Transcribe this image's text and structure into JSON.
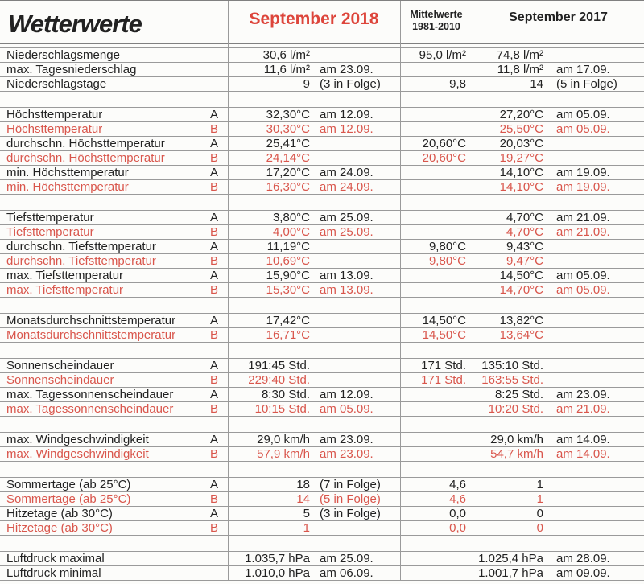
{
  "header": {
    "title": "Wetterwerte",
    "col_2018": "September 2018",
    "col_mittel_line1": "Mittelwerte",
    "col_mittel_line2": "1981-2010",
    "col_2017": "September 2017"
  },
  "colors": {
    "red_rows": "#d9564c",
    "red_header": "#dd453b",
    "grid_line": "#9a9a9a",
    "text": "#222222",
    "paper": "#fcfcfa"
  },
  "sections": [
    {
      "name": "niederschlag",
      "rows": [
        {
          "label": "Niederschlagsmenge",
          "variant": "",
          "style": "black",
          "v2018": "30,6 l/m²",
          "d2018": "",
          "mittel": "95,0 l/m²",
          "v2017": "74,8 l/m²",
          "d2017": ""
        },
        {
          "label": "max. Tagesniederschlag",
          "variant": "",
          "style": "black",
          "v2018": "11,6 l/m²",
          "d2018": "am 23.09.",
          "mittel": "",
          "v2017": "11,8 l/m²",
          "d2017": "am 17.09."
        },
        {
          "label": "Niederschlagstage",
          "variant": "",
          "style": "black",
          "v2018": "9",
          "d2018": "(3 in Folge)",
          "mittel": "9,8",
          "v2017": "14",
          "d2017": "(5 in Folge)"
        }
      ]
    },
    {
      "name": "hoechsttemperatur",
      "rows": [
        {
          "label": "Höchsttemperatur",
          "variant": "A",
          "style": "black",
          "v2018": "32,30°C",
          "d2018": "am 12.09.",
          "mittel": "",
          "v2017": "27,20°C",
          "d2017": "am 05.09."
        },
        {
          "label": "Höchsttemperatur",
          "variant": "B",
          "style": "red",
          "v2018": "30,30°C",
          "d2018": "am 12.09.",
          "mittel": "",
          "v2017": "25,50°C",
          "d2017": "am 05.09."
        },
        {
          "label": "durchschn. Höchsttemperatur",
          "variant": "A",
          "style": "black",
          "v2018": "25,41°C",
          "d2018": "",
          "mittel": "20,60°C",
          "v2017": "20,03°C",
          "d2017": ""
        },
        {
          "label": "durchschn. Höchsttemperatur",
          "variant": "B",
          "style": "red",
          "v2018": "24,14°C",
          "d2018": "",
          "mittel": "20,60°C",
          "v2017": "19,27°C",
          "d2017": ""
        },
        {
          "label": "min. Höchsttemperatur",
          "variant": "A",
          "style": "black",
          "v2018": "17,20°C",
          "d2018": "am 24.09.",
          "mittel": "",
          "v2017": "14,10°C",
          "d2017": "am 19.09."
        },
        {
          "label": "min. Höchsttemperatur",
          "variant": "B",
          "style": "red",
          "v2018": "16,30°C",
          "d2018": "am 24.09.",
          "mittel": "",
          "v2017": "14,10°C",
          "d2017": "am 19.09."
        }
      ]
    },
    {
      "name": "tiefsttemperatur",
      "rows": [
        {
          "label": "Tiefsttemperatur",
          "variant": "A",
          "style": "black",
          "v2018": "3,80°C",
          "d2018": "am 25.09.",
          "mittel": "",
          "v2017": "4,70°C",
          "d2017": "am 21.09."
        },
        {
          "label": "Tiefsttemperatur",
          "variant": "B",
          "style": "red",
          "v2018": "4,00°C",
          "d2018": "am 25.09.",
          "mittel": "",
          "v2017": "4,70°C",
          "d2017": "am 21.09."
        },
        {
          "label": "durchschn. Tiefsttemperatur",
          "variant": "A",
          "style": "black",
          "v2018": "11,19°C",
          "d2018": "",
          "mittel": "9,80°C",
          "v2017": "9,43°C",
          "d2017": ""
        },
        {
          "label": "durchschn. Tiefsttemperatur",
          "variant": "B",
          "style": "red",
          "v2018": "10,69°C",
          "d2018": "",
          "mittel": "9,80°C",
          "v2017": "9,47°C",
          "d2017": ""
        },
        {
          "label": "max. Tiefsttemperatur",
          "variant": "A",
          "style": "black",
          "v2018": "15,90°C",
          "d2018": "am 13.09.",
          "mittel": "",
          "v2017": "14,50°C",
          "d2017": "am 05.09."
        },
        {
          "label": "max. Tiefsttemperatur",
          "variant": "B",
          "style": "red",
          "v2018": "15,30°C",
          "d2018": "am 13.09.",
          "mittel": "",
          "v2017": "14,70°C",
          "d2017": "am 05.09."
        }
      ]
    },
    {
      "name": "monatsdurchschnitt",
      "rows": [
        {
          "label": "Monatsdurchschnittstemperatur",
          "variant": "A",
          "style": "black",
          "v2018": "17,42°C",
          "d2018": "",
          "mittel": "14,50°C",
          "v2017": "13,82°C",
          "d2017": ""
        },
        {
          "label": "Monatsdurchschnittstemperatur",
          "variant": "B",
          "style": "red",
          "v2018": "16,71°C",
          "d2018": "",
          "mittel": "14,50°C",
          "v2017": "13,64°C",
          "d2017": ""
        }
      ]
    },
    {
      "name": "sonnenschein",
      "rows": [
        {
          "label": "Sonnenscheindauer",
          "variant": "A",
          "style": "black",
          "v2018": "191:45 Std.",
          "d2018": "",
          "mittel": "171 Std.",
          "v2017": "135:10 Std.",
          "d2017": ""
        },
        {
          "label": "Sonnenscheindauer",
          "variant": "B",
          "style": "red",
          "v2018": "229:40 Std.",
          "d2018": "",
          "mittel": "171 Std.",
          "v2017": "163:55 Std.",
          "d2017": ""
        },
        {
          "label": "max. Tagessonnenscheindauer",
          "variant": "A",
          "style": "black",
          "v2018": "8:30 Std.",
          "d2018": "am 12.09.",
          "mittel": "",
          "v2017": "8:25 Std.",
          "d2017": "am 23.09."
        },
        {
          "label": "max. Tagessonnenscheindauer",
          "variant": "B",
          "style": "red",
          "v2018": "10:15 Std.",
          "d2018": "am 05.09.",
          "mittel": "",
          "v2017": "10:20 Std.",
          "d2017": "am 21.09."
        }
      ]
    },
    {
      "name": "wind",
      "rows": [
        {
          "label": "max. Windgeschwindigkeit",
          "variant": "A",
          "style": "black",
          "v2018": "29,0 km/h",
          "d2018": "am 23.09.",
          "mittel": "",
          "v2017": "29,0 km/h",
          "d2017": "am 14.09."
        },
        {
          "label": "max. Windgeschwindigkeit",
          "variant": "B",
          "style": "red",
          "v2018": "57,9 km/h",
          "d2018": "am 23.09.",
          "mittel": "",
          "v2017": "54,7 km/h",
          "d2017": "am 14.09."
        }
      ]
    },
    {
      "name": "sommertage-hitzetage",
      "rows": [
        {
          "label": "Sommertage (ab 25°C)",
          "variant": "A",
          "style": "black",
          "v2018": "18",
          "d2018": "(7 in Folge)",
          "mittel": "4,6",
          "v2017": "1",
          "d2017": ""
        },
        {
          "label": "Sommertage (ab 25°C)",
          "variant": "B",
          "style": "red",
          "v2018": "14",
          "d2018": "(5 in Folge)",
          "mittel": "4,6",
          "v2017": "1",
          "d2017": ""
        },
        {
          "label": "Hitzetage (ab 30°C)",
          "variant": "A",
          "style": "black",
          "v2018": "5",
          "d2018": "(3 in Folge)",
          "mittel": "0,0",
          "v2017": "0",
          "d2017": ""
        },
        {
          "label": "Hitzetage (ab 30°C)",
          "variant": "B",
          "style": "red",
          "v2018": "1",
          "d2018": "",
          "mittel": "0,0",
          "v2017": "0",
          "d2017": ""
        }
      ]
    },
    {
      "name": "luftdruck",
      "rows": [
        {
          "label": "Luftdruck maximal",
          "variant": "",
          "style": "black",
          "v2018": "1.035,7 hPa",
          "d2018": "am 25.09.",
          "mittel": "",
          "v2017": "1.025,4 hPa",
          "d2017": "am 28.09."
        },
        {
          "label": "Luftdruck minimal",
          "variant": "",
          "style": "black",
          "v2018": "1.010,0 hPa",
          "d2018": "am 06.09.",
          "mittel": "",
          "v2017": "1.001,7 hPa",
          "d2017": "am 09.09."
        }
      ]
    }
  ]
}
